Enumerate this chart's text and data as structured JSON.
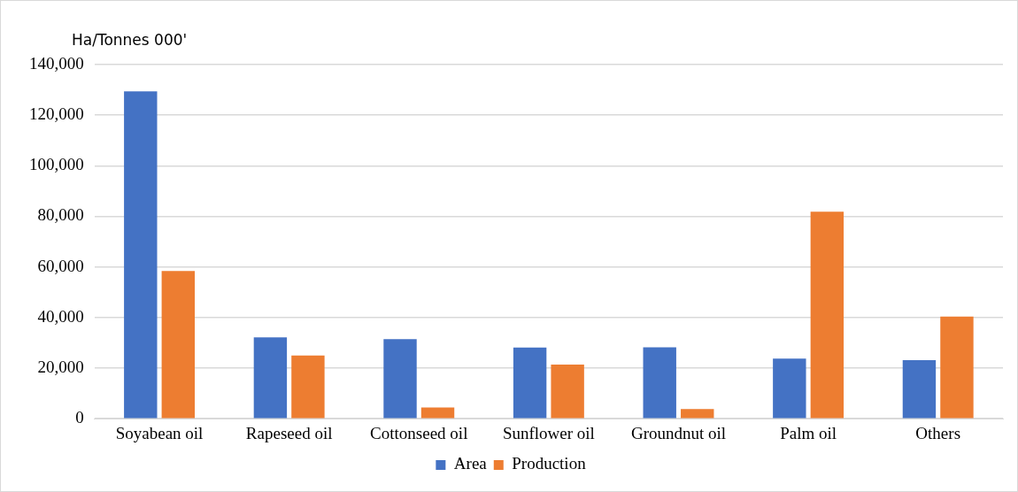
{
  "chart_data": {
    "type": "bar",
    "ylabel": "Ha/Tonnes 000'",
    "categories": [
      "Soyabean oil",
      "Rapeseed oil",
      "Cottonseed oil",
      "Sunflower oil",
      "Groundnut oil",
      "Palm oil",
      "Others"
    ],
    "series": [
      {
        "name": "Area",
        "color": "#4472c4",
        "values": [
          129400,
          32200,
          31500,
          28100,
          28200,
          23800,
          23200
        ]
      },
      {
        "name": "Production",
        "color": "#ed7d31",
        "values": [
          58400,
          25000,
          4400,
          21400,
          3800,
          81800,
          40400
        ]
      }
    ],
    "ylim": [
      0,
      140000
    ],
    "yticks": [
      {
        "value": 0,
        "label": "0"
      },
      {
        "value": 20000,
        "label": "20,000"
      },
      {
        "value": 40000,
        "label": "40,000"
      },
      {
        "value": 60000,
        "label": "60,000"
      },
      {
        "value": 80000,
        "label": "80,000"
      },
      {
        "value": 100000,
        "label": "100,000"
      },
      {
        "value": 120000,
        "label": "120,000"
      },
      {
        "value": 140000,
        "label": "140,000"
      }
    ],
    "grid": "y",
    "legend": "bottom"
  }
}
